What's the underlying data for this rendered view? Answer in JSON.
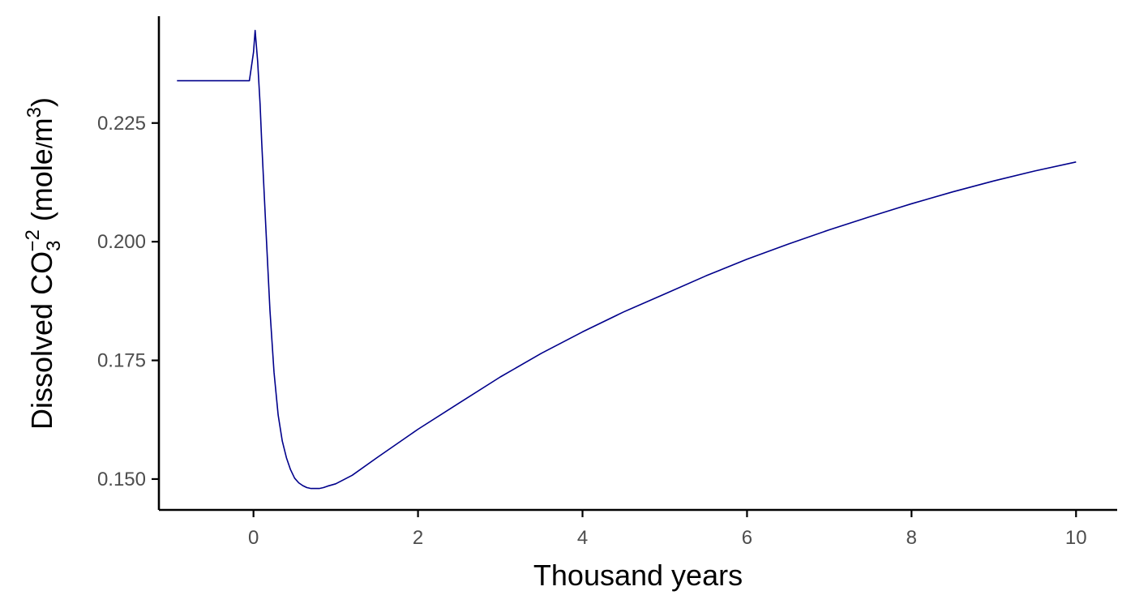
{
  "chart_data": {
    "type": "line",
    "title": "",
    "xlabel": "Thousand years",
    "ylabel": {
      "prefix": "Dissolved CO",
      "subscript": "3",
      "superscript": "−2",
      "units_open": " (mole",
      "slash": "/",
      "units_m": "m",
      "units_exp": "3",
      "units_close": ")"
    },
    "xlim": [
      -1.15,
      10.5
    ],
    "ylim": [
      0.1435,
      0.2475
    ],
    "xticks": [
      0,
      2,
      4,
      6,
      8,
      10
    ],
    "xtick_labels": [
      "0",
      "2",
      "4",
      "6",
      "8",
      "10"
    ],
    "yticks": [
      0.15,
      0.175,
      0.2,
      0.225
    ],
    "ytick_labels": [
      "0.150",
      "0.175",
      "0.200",
      "0.225"
    ],
    "grid": false,
    "legend": "none",
    "line_color": "#00008B",
    "series": [
      {
        "x": [
          -0.93,
          -0.05,
          0.0,
          0.02,
          0.05,
          0.08,
          0.1,
          0.15,
          0.2,
          0.25,
          0.3,
          0.35,
          0.4,
          0.45,
          0.5,
          0.55,
          0.6,
          0.65,
          0.7,
          0.75,
          0.8,
          0.85,
          0.9,
          1.0,
          1.2,
          1.5,
          2.0,
          2.5,
          3.0,
          3.5,
          4.0,
          4.5,
          5.0,
          5.5,
          6.0,
          6.5,
          7.0,
          7.5,
          8.0,
          8.5,
          9.0,
          9.5,
          10.0
        ],
        "y": [
          0.2339,
          0.2339,
          0.2399,
          0.2445,
          0.238,
          0.229,
          0.221,
          0.203,
          0.1855,
          0.1725,
          0.1635,
          0.158,
          0.1545,
          0.152,
          0.1502,
          0.1492,
          0.1486,
          0.1482,
          0.148,
          0.148,
          0.148,
          0.1482,
          0.1485,
          0.149,
          0.1508,
          0.1545,
          0.1605,
          0.166,
          0.1715,
          0.1765,
          0.181,
          0.1852,
          0.189,
          0.1928,
          0.1963,
          0.1995,
          0.2025,
          0.2053,
          0.208,
          0.2105,
          0.2128,
          0.2149,
          0.2168
        ]
      }
    ]
  }
}
